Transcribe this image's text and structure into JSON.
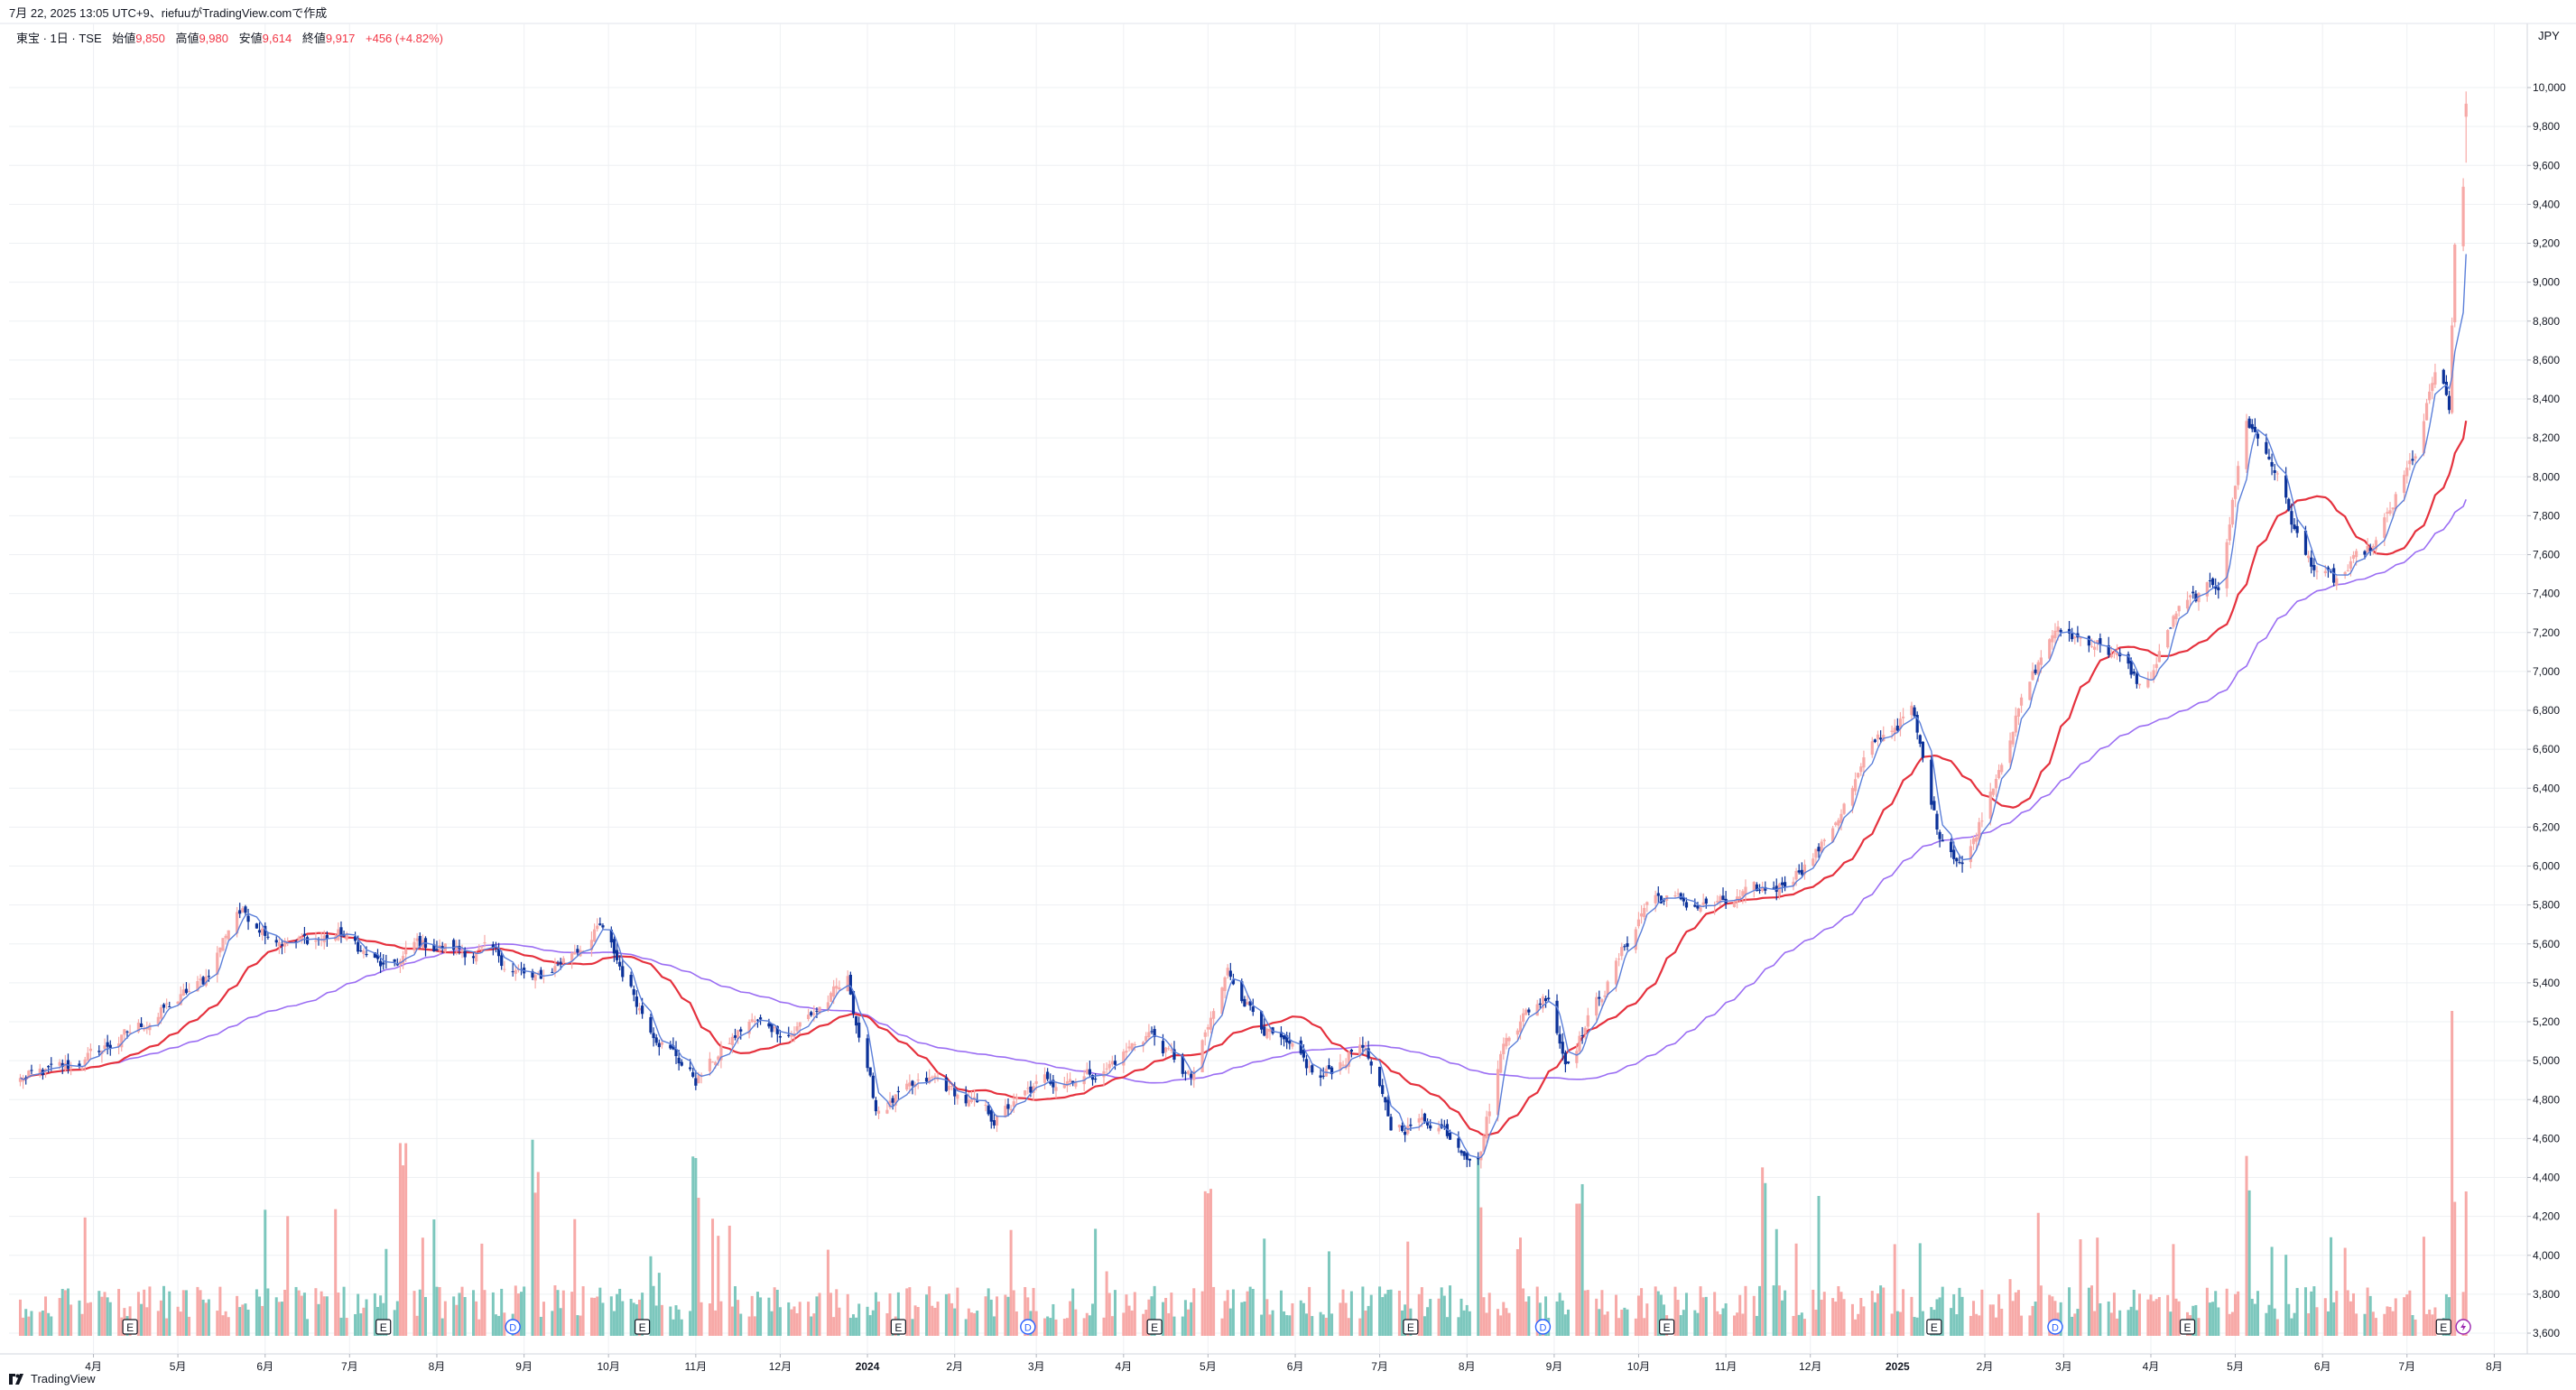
{
  "header": {
    "timestamp_line": "7月 22, 2025 13:05 UTC+9、riefuuがTradingView.comで作成",
    "symbol": "東宝 · 1日 · TSE",
    "open_label": "始値",
    "open": "9,850",
    "high_label": "高値",
    "high": "9,980",
    "low_label": "安値",
    "low": "9,614",
    "close_label": "終値",
    "close": "9,917",
    "change": "+456 (+4.82%)"
  },
  "currency": "JPY",
  "footer": {
    "brand": "TradingView"
  },
  "colors": {
    "up": "#f7a9a7",
    "down": "#0c3299",
    "ma_short": "#5b7fd9",
    "ma_mid": "#e5323e",
    "ma_long": "#9b6ef3",
    "vol_up": "#f7a9a7",
    "vol_down": "#7cc7bd",
    "grid": "#eef0f3"
  },
  "chart_data": {
    "type": "candlestick",
    "y_axis": {
      "min": 3600,
      "max": 10000,
      "ticks": [
        "3,600",
        "3,800",
        "4,000",
        "4,200",
        "4,400",
        "4,600",
        "4,800",
        "5,000",
        "5,200",
        "5,400",
        "5,600",
        "5,800",
        "6,000",
        "6,200",
        "6,400",
        "6,600",
        "6,800",
        "7,000",
        "7,200",
        "7,400",
        "7,600",
        "7,800",
        "8,000",
        "8,200",
        "8,400",
        "8,600",
        "8,800",
        "9,000",
        "9,200",
        "9,400",
        "9,600",
        "9,800",
        "10,000"
      ]
    },
    "x_axis": {
      "labels": [
        "4月",
        "5月",
        "6月",
        "7月",
        "8月",
        "9月",
        "10月",
        "11月",
        "12月",
        "2024",
        "2月",
        "3月",
        "4月",
        "5月",
        "6月",
        "7月",
        "8月",
        "9月",
        "10月",
        "11月",
        "12月",
        "2025",
        "2月",
        "3月",
        "4月",
        "5月",
        "6月",
        "7月",
        "8月"
      ]
    },
    "price_keypoints": [
      [
        "2023-03-06",
        4900
      ],
      [
        "2023-03-25",
        4970
      ],
      [
        "2023-04-15",
        5150
      ],
      [
        "2023-05-10",
        5400
      ],
      [
        "2023-05-22",
        5780
      ],
      [
        "2023-06-10",
        5600
      ],
      [
        "2023-06-28",
        5650
      ],
      [
        "2023-07-15",
        5450
      ],
      [
        "2023-07-25",
        5600
      ],
      [
        "2023-08-20",
        5550
      ],
      [
        "2023-09-05",
        5400
      ],
      [
        "2023-09-28",
        5680
      ],
      [
        "2023-10-15",
        5200
      ],
      [
        "2023-11-01",
        4900
      ],
      [
        "2023-11-20",
        5200
      ],
      [
        "2023-12-05",
        5150
      ],
      [
        "2023-12-25",
        5400
      ],
      [
        "2024-01-04",
        4750
      ],
      [
        "2024-01-25",
        4900
      ],
      [
        "2024-02-15",
        4700
      ],
      [
        "2024-03-05",
        4900
      ],
      [
        "2024-03-25",
        4950
      ],
      [
        "2024-04-10",
        5150
      ],
      [
        "2024-04-25",
        4900
      ],
      [
        "2024-05-08",
        5450
      ],
      [
        "2024-05-25",
        5100
      ],
      [
        "2024-06-10",
        4900
      ],
      [
        "2024-06-25",
        5100
      ],
      [
        "2024-07-05",
        4650
      ],
      [
        "2024-07-20",
        4700
      ],
      [
        "2024-08-05",
        4500
      ],
      [
        "2024-08-15",
        5150
      ],
      [
        "2024-08-30",
        5350
      ],
      [
        "2024-09-05",
        5000
      ],
      [
        "2024-09-20",
        5400
      ],
      [
        "2024-10-05",
        5850
      ],
      [
        "2024-10-20",
        5800
      ],
      [
        "2024-11-01",
        5800
      ],
      [
        "2024-11-20",
        5900
      ],
      [
        "2024-12-05",
        6100
      ],
      [
        "2024-12-25",
        6650
      ],
      [
        "2025-01-06",
        6800
      ],
      [
        "2025-01-15",
        6200
      ],
      [
        "2025-01-25",
        6000
      ],
      [
        "2025-02-10",
        6700
      ],
      [
        "2025-02-25",
        7200
      ],
      [
        "2025-03-15",
        7150
      ],
      [
        "2025-03-30",
        6900
      ],
      [
        "2025-04-10",
        7300
      ],
      [
        "2025-04-25",
        7450
      ],
      [
        "2025-05-05",
        8300
      ],
      [
        "2025-05-15",
        8050
      ],
      [
        "2025-05-25",
        7600
      ],
      [
        "2025-06-05",
        7450
      ],
      [
        "2025-06-20",
        7650
      ],
      [
        "2025-07-05",
        8150
      ],
      [
        "2025-07-12",
        8600
      ],
      [
        "2025-07-16",
        8300
      ],
      [
        "2025-07-18",
        9200
      ],
      [
        "2025-07-21",
        9461
      ],
      [
        "2025-07-22",
        9917
      ]
    ],
    "last_candle": {
      "open": 9850,
      "high": 9980,
      "low": 9614,
      "close": 9917
    },
    "volume": {
      "description": "daily volume bars, scale relative",
      "spike_dates": [
        "2023-07-20",
        "2023-09-05",
        "2023-11-01",
        "2024-05-01",
        "2024-08-05",
        "2024-09-10",
        "2024-11-15",
        "2025-05-05",
        "2025-07-18"
      ]
    },
    "moving_averages": [
      {
        "name": "short",
        "color": "#5b7fd9"
      },
      {
        "name": "mid",
        "color": "#e5323e"
      },
      {
        "name": "long",
        "color": "#9b6ef3"
      }
    ],
    "event_markers": [
      {
        "type": "E",
        "date": "2023-04-14"
      },
      {
        "type": "E",
        "date": "2023-07-13"
      },
      {
        "type": "D",
        "date": "2023-08-28"
      },
      {
        "type": "E",
        "date": "2023-10-13"
      },
      {
        "type": "E",
        "date": "2024-01-12"
      },
      {
        "type": "D",
        "date": "2024-02-27"
      },
      {
        "type": "E",
        "date": "2024-04-12"
      },
      {
        "type": "E",
        "date": "2024-07-12"
      },
      {
        "type": "D",
        "date": "2024-08-28"
      },
      {
        "type": "E",
        "date": "2024-10-11"
      },
      {
        "type": "E",
        "date": "2025-01-14"
      },
      {
        "type": "D",
        "date": "2025-02-26"
      },
      {
        "type": "E",
        "date": "2025-04-14"
      },
      {
        "type": "E",
        "date": "2025-07-14"
      },
      {
        "type": "split",
        "date": "2025-07-21"
      }
    ]
  }
}
